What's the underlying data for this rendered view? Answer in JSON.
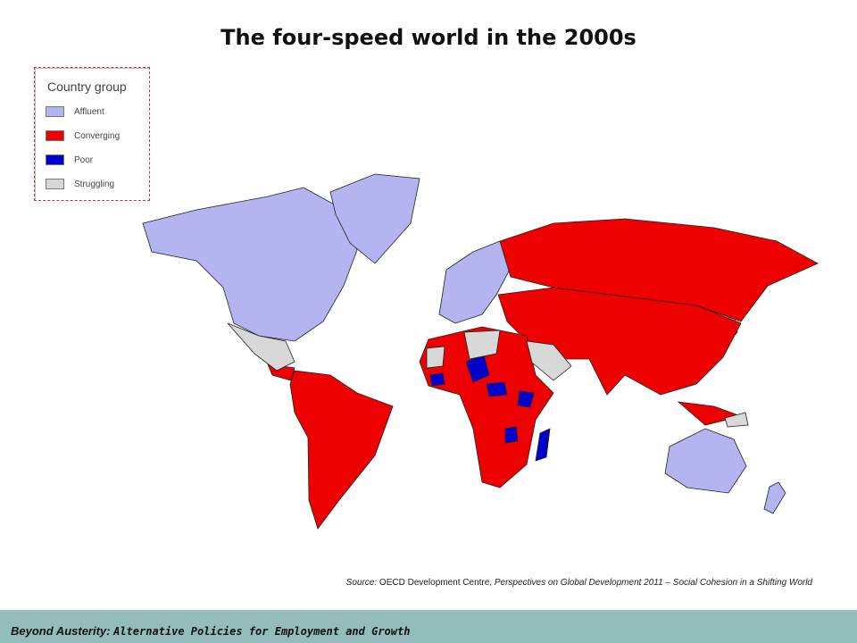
{
  "title": "The four-speed world in the 2000s",
  "legend": {
    "title": "Country group",
    "items": [
      {
        "label": "Affluent",
        "color": "#b4b4f0"
      },
      {
        "label": "Converging",
        "color": "#ee0000"
      },
      {
        "label": "Poor",
        "color": "#0000cc"
      },
      {
        "label": "Struggling",
        "color": "#d8d8d8"
      }
    ]
  },
  "source": {
    "prefix": "Source:",
    "org": "OECD Development Centre,",
    "publication": "Perspectives on Global Development 2011 – Social Cohesion in a Shifting World"
  },
  "footer": {
    "lead": "Beyond Austerity:",
    "rest": "Alternative Policies for Employment and Growth"
  }
}
